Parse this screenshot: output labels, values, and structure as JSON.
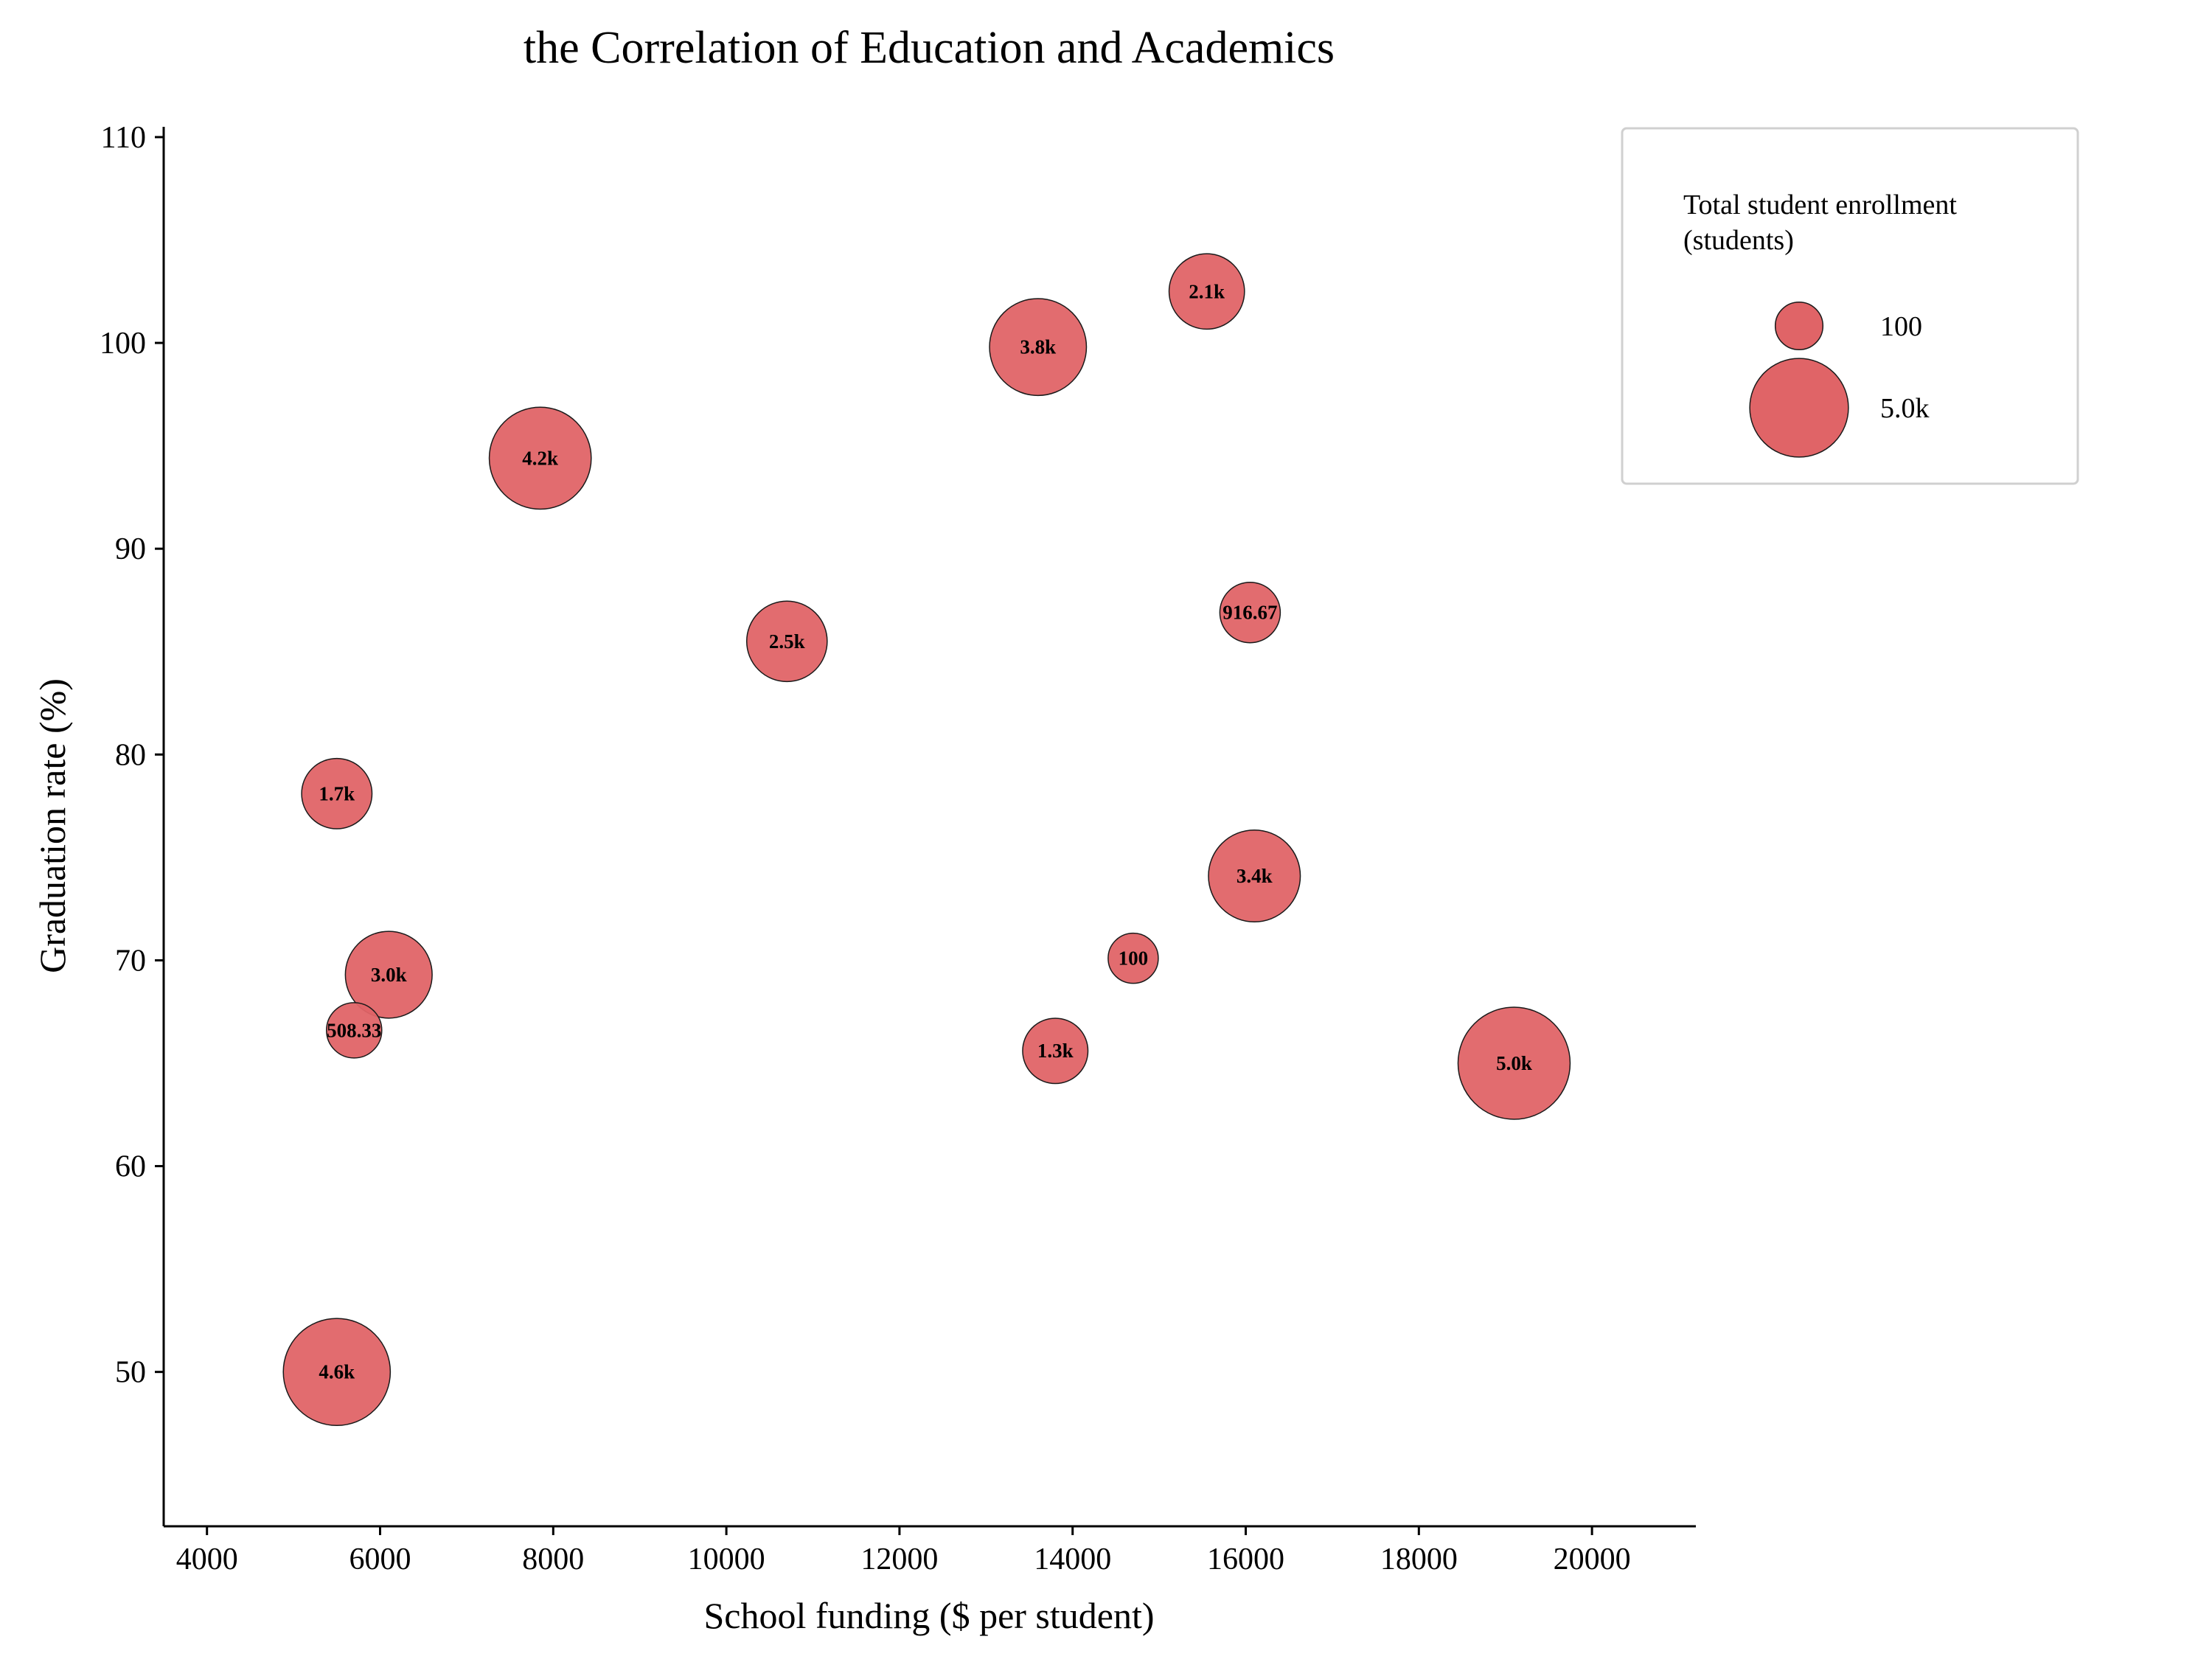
{
  "chart_data": {
    "type": "scatter",
    "title": "the Correlation of Education and Academics",
    "xlabel": "School funding ($ per student)",
    "ylabel": "Graduation rate (%)",
    "xlim": [
      3500,
      21200
    ],
    "ylim": [
      42.5,
      110.5
    ],
    "xticks": [
      4000,
      6000,
      8000,
      10000,
      12000,
      14000,
      16000,
      18000,
      20000
    ],
    "yticks": [
      50,
      60,
      70,
      80,
      90,
      100,
      110
    ],
    "grid": false,
    "bubble_color": "#e06467",
    "points": [
      {
        "x": 15550,
        "y": 102.5,
        "size": 2100,
        "label": "2.1k"
      },
      {
        "x": 13600,
        "y": 99.8,
        "size": 3800,
        "label": "3.8k"
      },
      {
        "x": 7850,
        "y": 94.4,
        "size": 4200,
        "label": "4.2k"
      },
      {
        "x": 10700,
        "y": 85.5,
        "size": 2500,
        "label": "2.5k"
      },
      {
        "x": 16050,
        "y": 86.9,
        "size": 916.67,
        "label": "916.67"
      },
      {
        "x": 5500,
        "y": 78.1,
        "size": 1700,
        "label": "1.7k"
      },
      {
        "x": 16100,
        "y": 74.1,
        "size": 3400,
        "label": "3.4k"
      },
      {
        "x": 14700,
        "y": 70.1,
        "size": 100,
        "label": "100"
      },
      {
        "x": 6100,
        "y": 69.3,
        "size": 3000,
        "label": "3.0k"
      },
      {
        "x": 5700,
        "y": 66.6,
        "size": 508.33,
        "label": "508.33"
      },
      {
        "x": 13800,
        "y": 65.6,
        "size": 1300,
        "label": "1.3k"
      },
      {
        "x": 19100,
        "y": 65.0,
        "size": 5000,
        "label": "5.0k"
      },
      {
        "x": 5500,
        "y": 50.0,
        "size": 4600,
        "label": "4.6k"
      }
    ],
    "legend": {
      "title_line1": "Total student enrollment",
      "title_line2": "(students)",
      "placement": "top-right",
      "entries": [
        {
          "size": 100,
          "label": "100"
        },
        {
          "size": 5000,
          "label": "5.0k"
        }
      ]
    }
  }
}
